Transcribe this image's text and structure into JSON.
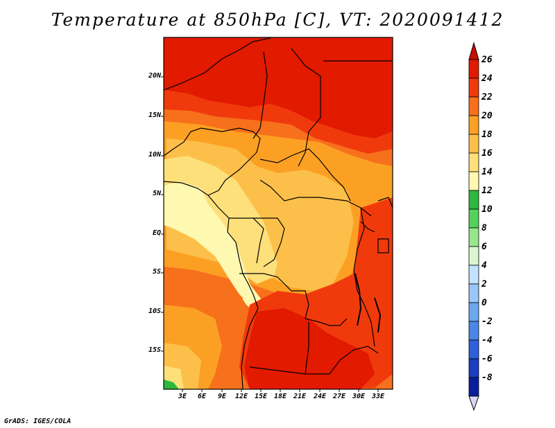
{
  "title": "Temperature at 850hPa [C], VT: 2020091412",
  "credit": "GrADS: IGES/COLA",
  "lat_labels": [
    "20N",
    "15N",
    "10N",
    "5N",
    "EQ",
    "5S",
    "10S",
    "15S"
  ],
  "lon_labels": [
    "3E",
    "6E",
    "9E",
    "12E",
    "15E",
    "18E",
    "21E",
    "24E",
    "27E",
    "30E",
    "33E"
  ],
  "colorbar": {
    "levels": [
      "26",
      "24",
      "22",
      "20",
      "18",
      "16",
      "14",
      "12",
      "10",
      "8",
      "6",
      "4",
      "2",
      "0",
      "-2",
      "-4",
      "-6",
      "-8"
    ],
    "colors": [
      "#e11a00",
      "#f03a0c",
      "#f7701c",
      "#fca024",
      "#fcc04a",
      "#fde07a",
      "#fef8b0",
      "#2eb83e",
      "#54d25a",
      "#96e68c",
      "#d8f7d0",
      "#c2e2ff",
      "#99c8f8",
      "#6ba8ee",
      "#4a86e6",
      "#2f60da",
      "#1a3ec2",
      "#0a1e9c",
      "#000064"
    ]
  },
  "map_colors": {
    "c26": "#e11a00",
    "c24": "#f03a0c",
    "c22": "#f7701c",
    "c20": "#fca024",
    "c18": "#fcc04a",
    "c16": "#fde07a",
    "c14": "#fef8b0",
    "c12": "#2eb83e"
  }
}
